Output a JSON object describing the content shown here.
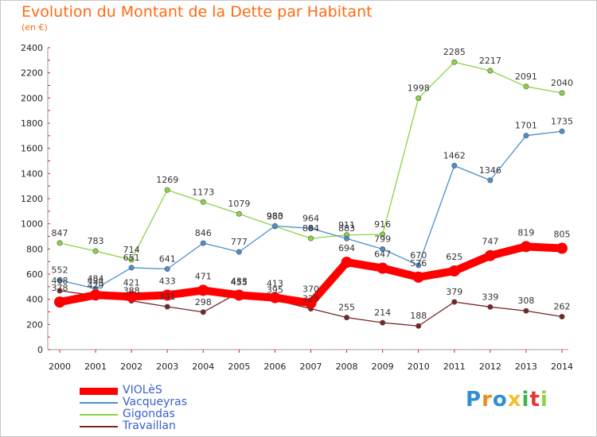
{
  "title": "Evolution du Montant de la Dette par Habitant",
  "subtitle": "(en €)",
  "logo": {
    "text": "Proxiti"
  },
  "chart_data": {
    "type": "line",
    "title": "Evolution du Montant de la Dette par Habitant",
    "ylabel": "(en €)",
    "ylim": [
      0,
      2400
    ],
    "yticks": [
      0,
      200,
      400,
      600,
      800,
      1000,
      1200,
      1400,
      1600,
      1800,
      2000,
      2200,
      2400
    ],
    "categories": [
      "2000",
      "2001",
      "2002",
      "2003",
      "2004",
      "2005",
      "2006",
      "2007",
      "2008",
      "2009",
      "2010",
      "2011",
      "2012",
      "2013",
      "2014"
    ],
    "grid": false,
    "legend_position": "bottom-left",
    "series": [
      {
        "name": "VIOLèS",
        "color": "#ff0000",
        "values": [
          378,
          434,
          421,
          433,
          471,
          433,
          413,
          370,
          694,
          647,
          576,
          625,
          747,
          819,
          805
        ]
      },
      {
        "name": "Vacqueyras",
        "color": "#4a8fd0",
        "values": [
          552,
          484,
          651,
          641,
          846,
          777,
          983,
          964,
          883,
          799,
          670,
          1462,
          1346,
          1701,
          1735
        ]
      },
      {
        "name": "Gigondas",
        "color": "#8bd446",
        "values": [
          847,
          783,
          714,
          1269,
          1173,
          1079,
          980,
          884,
          911,
          916,
          1998,
          2285,
          2217,
          2091,
          2040
        ]
      },
      {
        "name": "Travaillan",
        "color": "#7a2424",
        "values": [
          468,
          429,
          388,
          341,
          298,
          455,
          395,
          325,
          255,
          214,
          188,
          379,
          339,
          308,
          262
        ]
      }
    ]
  }
}
